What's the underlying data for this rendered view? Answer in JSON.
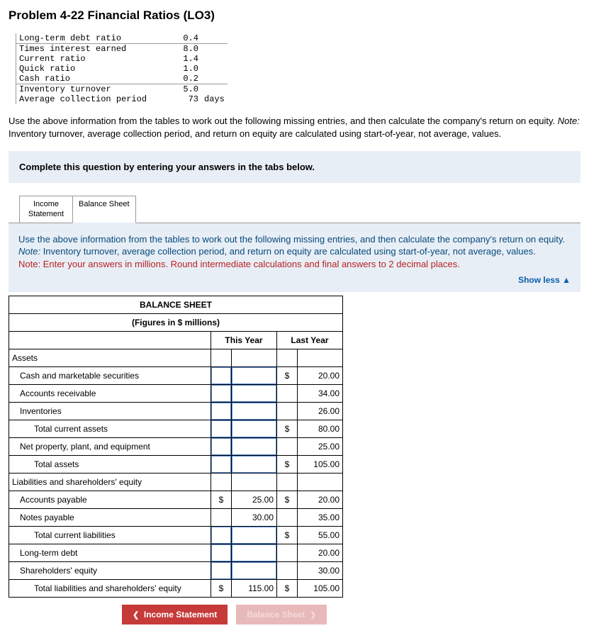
{
  "title": "Problem 4-22 Financial Ratios (LO3)",
  "ratios": [
    {
      "label": "Long-term debt ratio",
      "value": "0.4",
      "unit": ""
    },
    {
      "label": "Times interest earned",
      "value": "8.0",
      "unit": ""
    },
    {
      "label": "Current ratio",
      "value": "1.4",
      "unit": ""
    },
    {
      "label": "Quick ratio",
      "value": "1.0",
      "unit": ""
    },
    {
      "label": "Cash ratio",
      "value": "0.2",
      "unit": ""
    },
    {
      "label": "Inventory turnover",
      "value": "5.0",
      "unit": ""
    },
    {
      "label": "Average collection period",
      "value": "73",
      "unit": "days"
    }
  ],
  "instructions_lead": "Use the above information from the tables to work out the following missing entries, and then calculate the company's return on equity. ",
  "instructions_note_label": "Note:",
  "instructions_note": " Inventory turnover, average collection period, and return on equity are calculated using start-of-year, not average, values.",
  "prompt_box": "Complete this question by entering your answers in the tabs below.",
  "tabs": {
    "t1a": "Income",
    "t1b": "Statement",
    "t2": "Balance Sheet"
  },
  "panel_text_lead": "Use the above information from the tables to work out the following missing entries, and then calculate the company's return on equity. ",
  "panel_note_label": "Note:",
  "panel_note": " Inventory turnover, average collection period, and return on equity are calculated using start-of-year, not average, values.",
  "panel_red": "Note: Enter your answers in millions. Round intermediate calculations and final answers to 2 decimal places.",
  "show_less": "Show less ▲",
  "bs_title": "BALANCE SHEET",
  "bs_subtitle": "(Figures in $ millions)",
  "col_this": "This Year",
  "col_last": "Last Year",
  "rows": {
    "assets": "Assets",
    "cash": "Cash and marketable securities",
    "ar": "Accounts receivable",
    "inv": "Inventories",
    "tca": "Total current assets",
    "ppe": "Net property, plant, and equipment",
    "ta": "Total assets",
    "liab_hdr": "Liabilities and shareholders' equity",
    "ap": "Accounts payable",
    "np": "Notes payable",
    "tcl": "Total current liabilities",
    "ltd": "Long-term debt",
    "se": "Shareholders' equity",
    "tlse": "Total liabilities and shareholders' equity"
  },
  "vals": {
    "cash_ly": "20.00",
    "ar_ly": "34.00",
    "inv_ly": "26.00",
    "tca_ly": "80.00",
    "ppe_ly": "25.00",
    "ta_ly": "105.00",
    "ap_ty": "25.00",
    "ap_ly": "20.00",
    "np_ty": "30.00",
    "np_ly": "35.00",
    "tcl_ly": "55.00",
    "ltd_ly": "20.00",
    "se_ly": "30.00",
    "tlse_ty": "115.00",
    "tlse_ly": "105.00"
  },
  "nav_prev": "Income Statement",
  "nav_next": "Balance Sheet"
}
